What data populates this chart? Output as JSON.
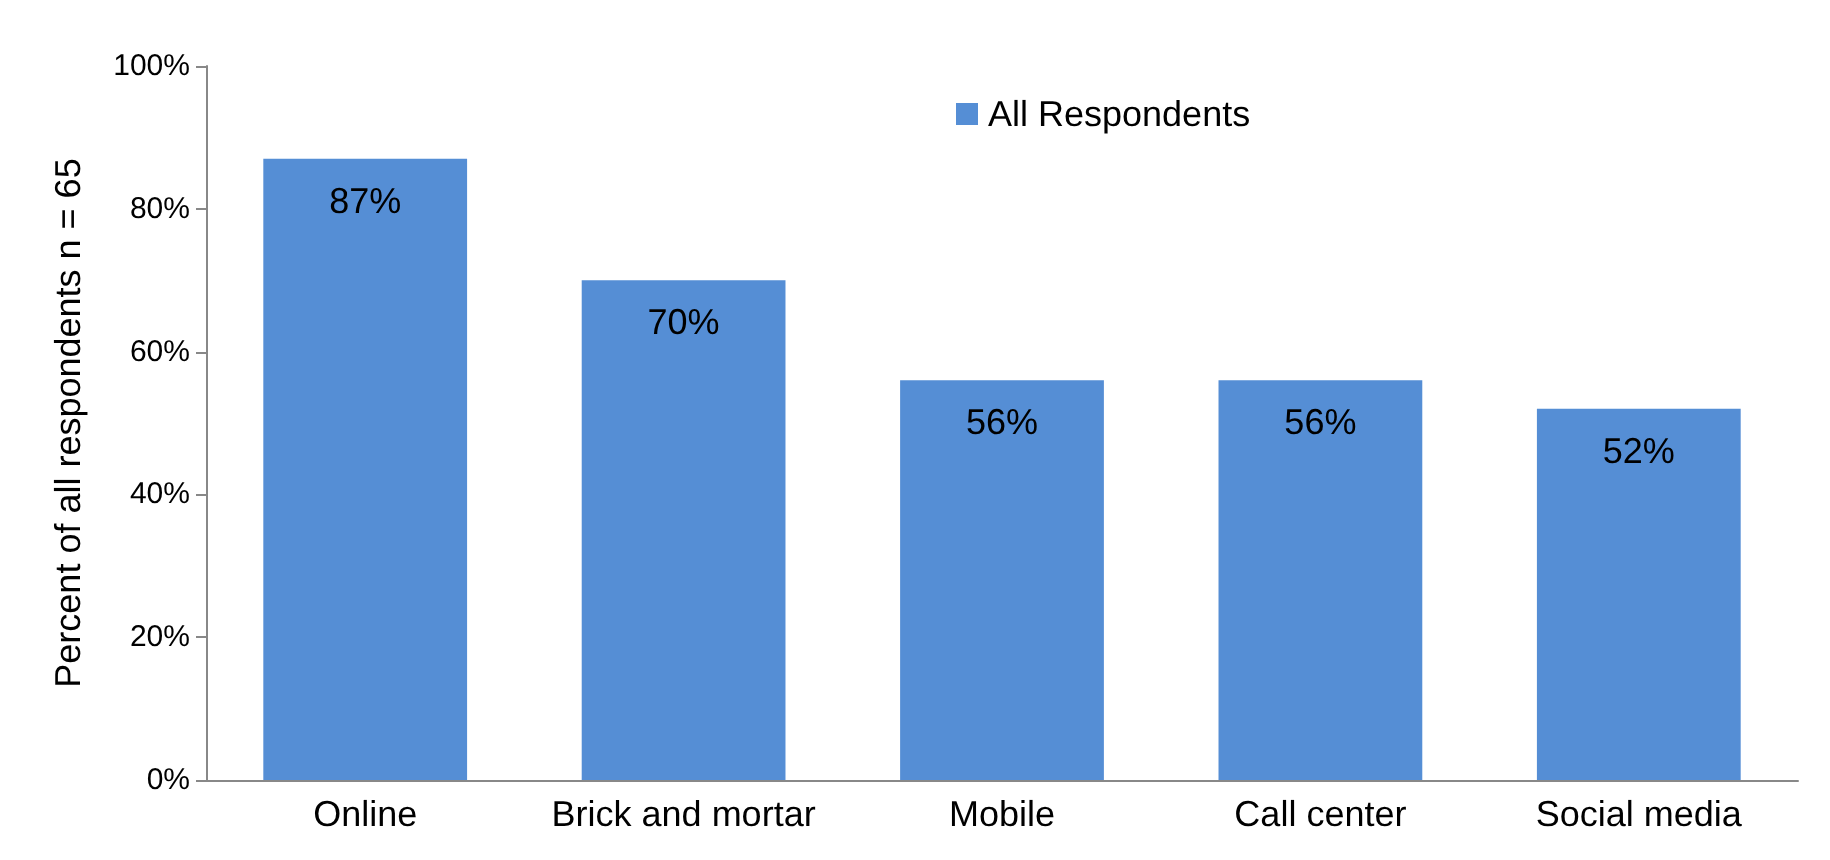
{
  "chart_data": {
    "type": "bar",
    "ylabel": "Percent of all respondents n = 65",
    "categories": [
      "Online",
      "Brick and mortar",
      "Mobile",
      "Call center",
      "Social media"
    ],
    "series": [
      {
        "name": "All Respondents",
        "color": "#558ed5",
        "values": [
          87,
          70,
          56,
          56,
          52
        ],
        "value_labels": [
          "87%",
          "70%",
          "56%",
          "56%",
          "52%"
        ]
      }
    ],
    "ylim": [
      0,
      100
    ],
    "yticks": [
      {
        "value": 0,
        "label": "0%"
      },
      {
        "value": 20,
        "label": "20%"
      },
      {
        "value": 40,
        "label": "40%"
      },
      {
        "value": 60,
        "label": "60%"
      },
      {
        "value": 80,
        "label": "80%"
      },
      {
        "value": 100,
        "label": "100%"
      }
    ],
    "grid": false,
    "legend": "top"
  }
}
